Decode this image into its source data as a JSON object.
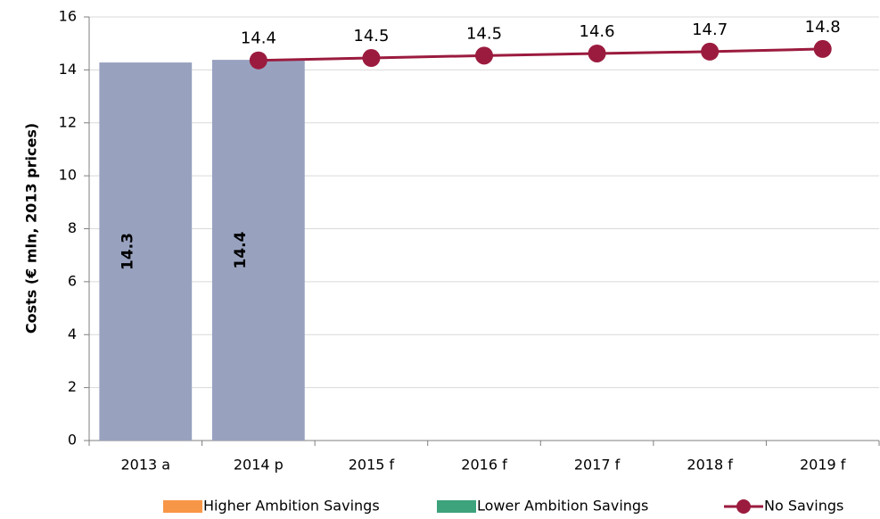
{
  "chart_data": {
    "type": "bar",
    "y_label": "Costs (€ mln, 2013 prices)",
    "categories": [
      "2013 a",
      "2014 p",
      "2015 f",
      "2016 f",
      "2017 f",
      "2018 f",
      "2019 f"
    ],
    "series": [
      {
        "type": "bar",
        "color": "#98a2bf",
        "values": [
          14.28,
          14.38,
          null,
          null,
          null,
          null,
          null
        ],
        "value_labels": [
          "14.3",
          "14.4",
          null,
          null,
          null,
          null,
          null
        ]
      },
      {
        "type": "bar",
        "name": "Higher Ambition Savings",
        "color": "#f79646",
        "values": [
          null,
          null,
          null,
          null,
          null,
          null,
          null
        ]
      },
      {
        "type": "bar",
        "name": "Lower Ambition Savings",
        "color": "#3ca37d",
        "values": [
          null,
          null,
          null,
          null,
          null,
          null,
          null
        ]
      },
      {
        "type": "line",
        "name": "No Savings",
        "color": "#9b1b3e",
        "values": [
          null,
          14.36,
          14.45,
          14.54,
          14.62,
          14.69,
          14.79
        ],
        "value_labels": [
          null,
          "14.4",
          "14.5",
          "14.5",
          "14.6",
          "14.7",
          "14.8"
        ]
      }
    ],
    "ylim": [
      0,
      16
    ],
    "yticks": [
      0,
      2,
      4,
      6,
      8,
      10,
      12,
      14,
      16
    ],
    "grid": true,
    "legend": "bottom"
  }
}
